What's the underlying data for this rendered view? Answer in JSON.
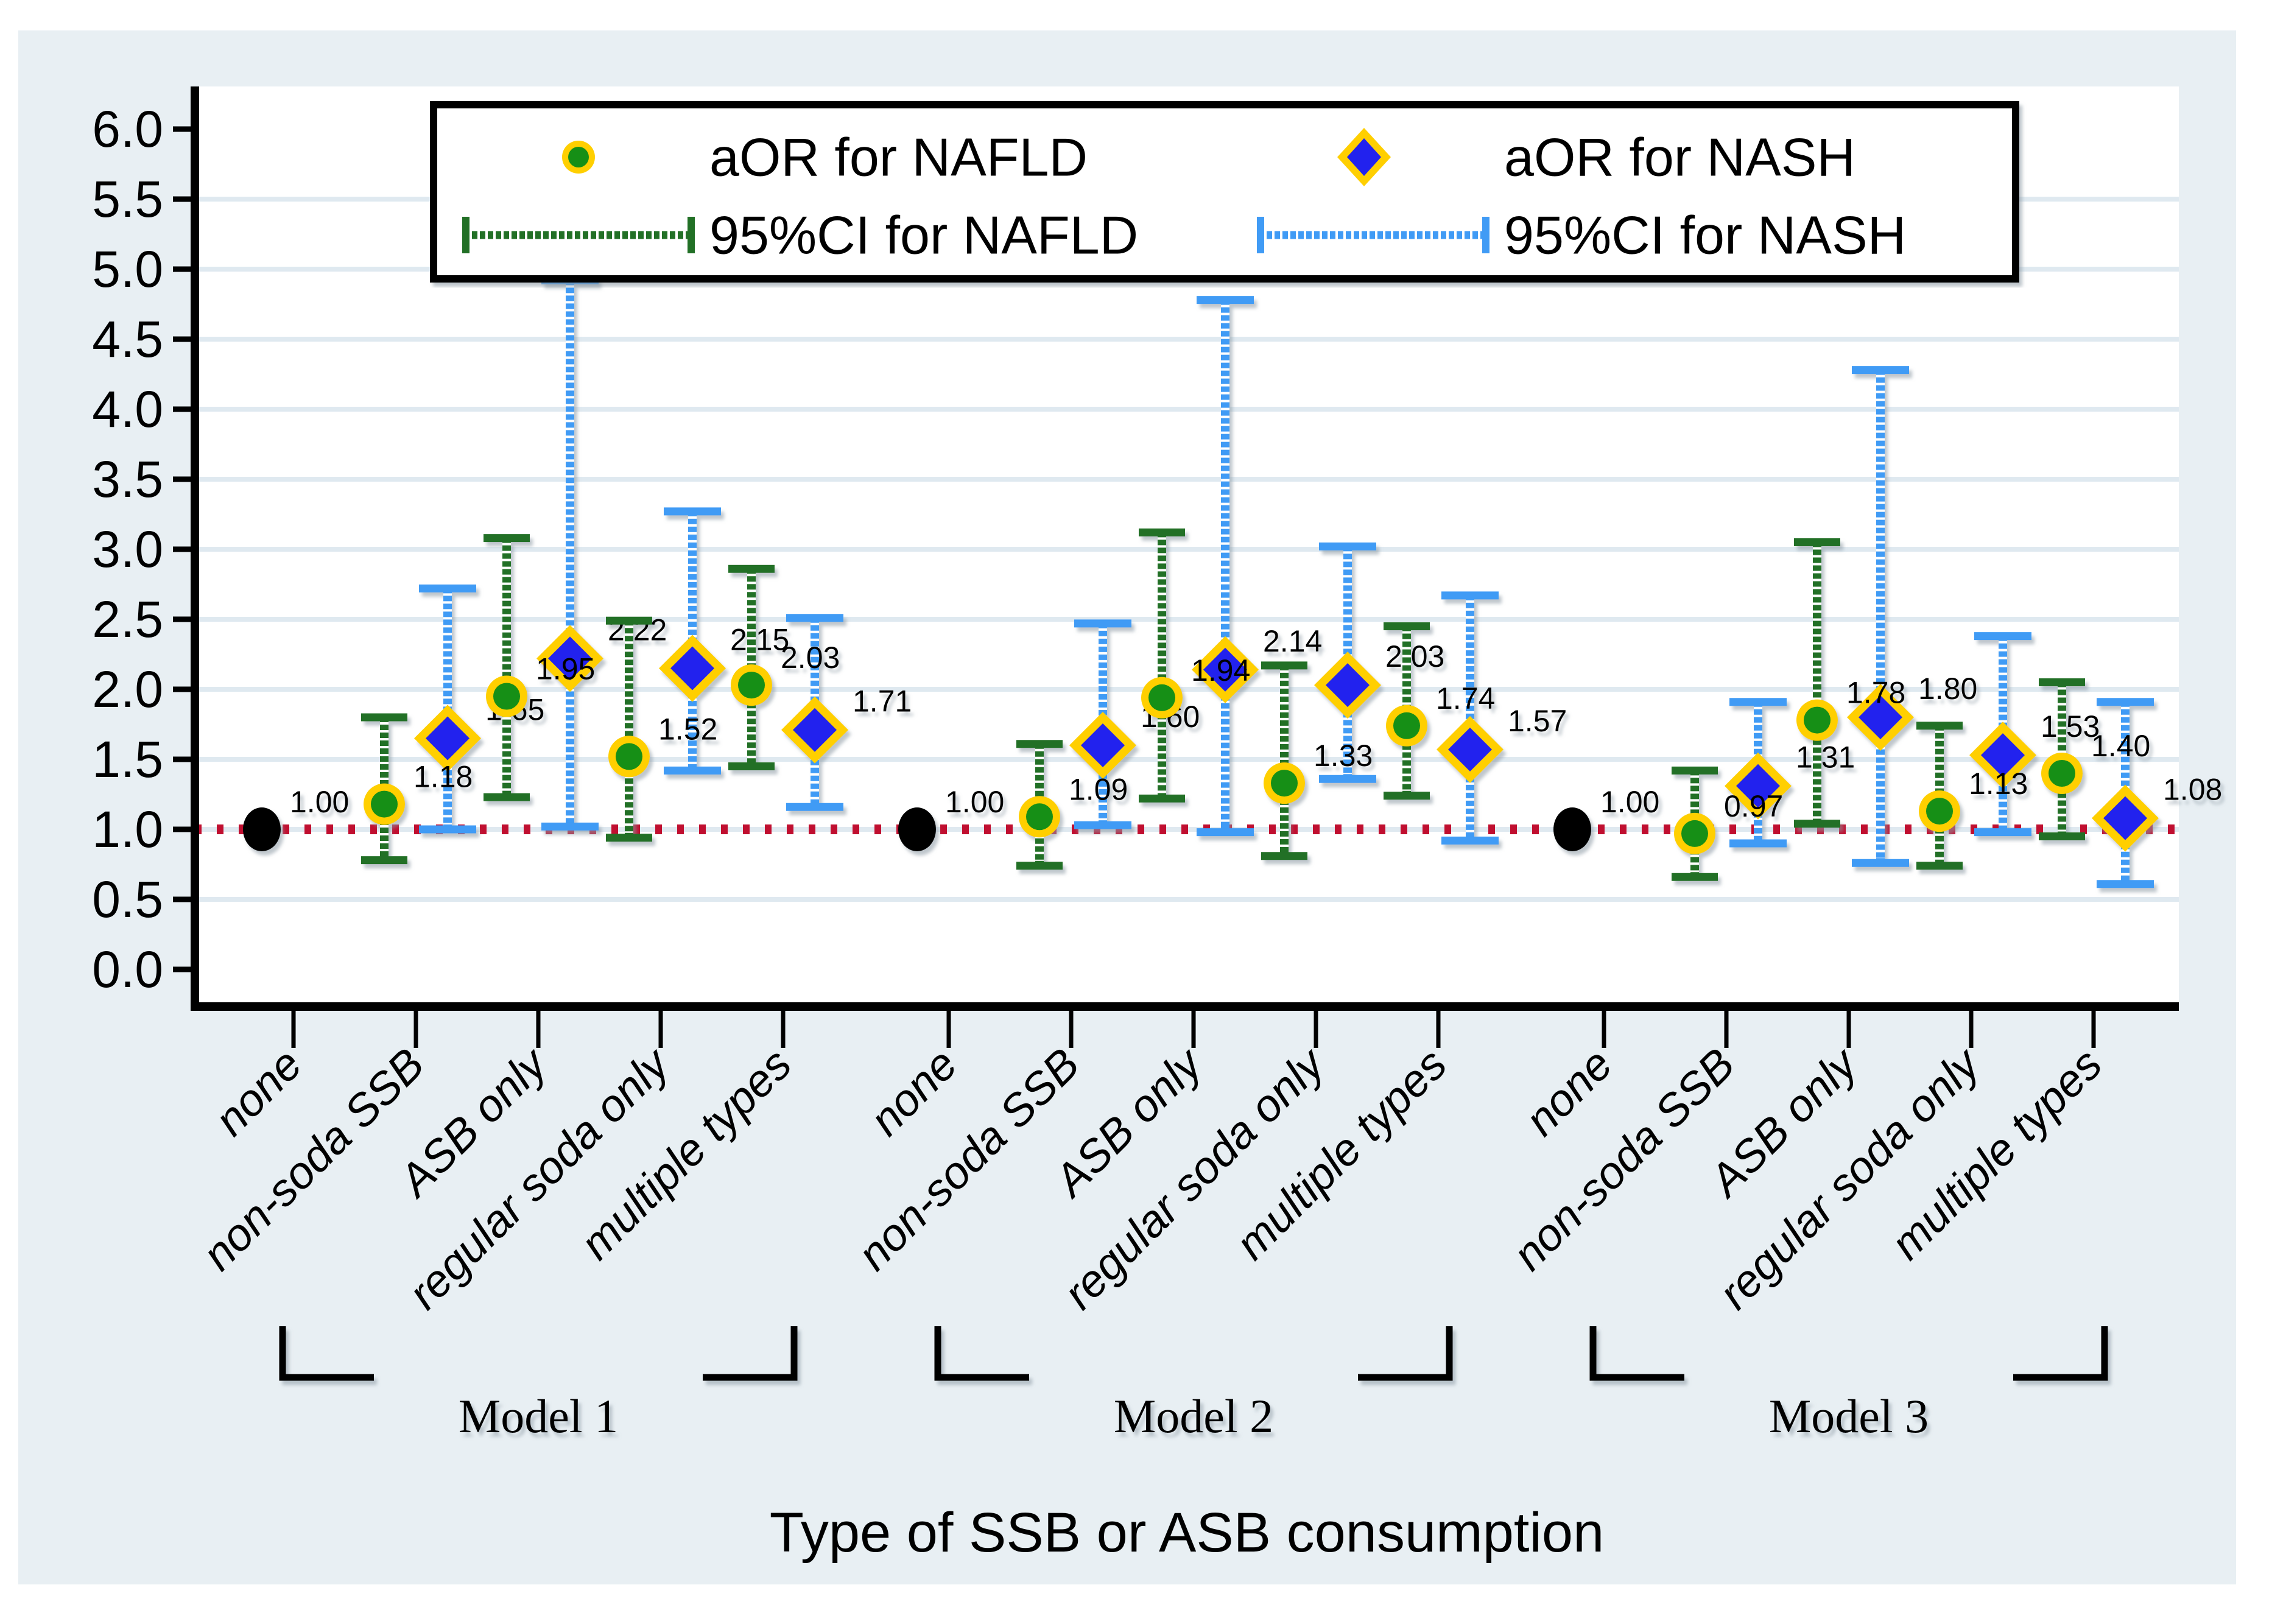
{
  "chart_data": {
    "type": "scatter",
    "subtype": "forest-errorbar",
    "xlabel": "Type of SSB or ASB consumption",
    "ylabel": "",
    "ylim": [
      0,
      6
    ],
    "ytick_step": 0.5,
    "yticks": [
      "0.0",
      "0.5",
      "1.0",
      "1.5",
      "2.0",
      "2.5",
      "3.0",
      "3.5",
      "4.0",
      "4.5",
      "5.0",
      "5.5",
      "6.0"
    ],
    "grid": true,
    "reference_line": 1.0,
    "categories": [
      "none",
      "non-soda SSB",
      "ASB only",
      "regular soda only",
      "multiple types"
    ],
    "legend": {
      "position": "top",
      "items": [
        {
          "id": "nafld-marker",
          "label": "aOR for NAFLD"
        },
        {
          "id": "nash-marker",
          "label": "aOR for NASH"
        },
        {
          "id": "nafld-ci",
          "label": "95%CI for NAFLD"
        },
        {
          "id": "nash-ci",
          "label": "95%CI for NASH"
        }
      ]
    },
    "groups": [
      {
        "label": "Model 1",
        "points": [
          {
            "category": "none",
            "type": "reference",
            "value": 1.0,
            "display": "1.00"
          },
          {
            "category": "non-soda SSB",
            "nafld": {
              "or": 1.18,
              "ci": [
                0.78,
                1.8
              ]
            },
            "nash": {
              "or": 1.65,
              "ci": [
                1.0,
                2.72
              ]
            }
          },
          {
            "category": "ASB only",
            "nafld": {
              "or": 1.95,
              "ci": [
                1.23,
                3.08
              ]
            },
            "nash": {
              "or": 2.22,
              "ci": [
                1.02,
                4.92
              ]
            }
          },
          {
            "category": "regular soda only",
            "nafld": {
              "or": 1.52,
              "ci": [
                0.94,
                2.49
              ]
            },
            "nash": {
              "or": 2.15,
              "ci": [
                1.42,
                3.27
              ]
            }
          },
          {
            "category": "multiple types",
            "nafld": {
              "or": 2.03,
              "ci": [
                1.45,
                2.86
              ]
            },
            "nash": {
              "or": 1.71,
              "ci": [
                1.16,
                2.51
              ]
            }
          }
        ]
      },
      {
        "label": "Model 2",
        "points": [
          {
            "category": "none",
            "type": "reference",
            "value": 1.0,
            "display": "1.00"
          },
          {
            "category": "non-soda SSB",
            "nafld": {
              "or": 1.09,
              "ci": [
                0.74,
                1.61
              ]
            },
            "nash": {
              "or": 1.6,
              "ci": [
                1.03,
                2.47
              ]
            }
          },
          {
            "category": "ASB only",
            "nafld": {
              "or": 1.94,
              "ci": [
                1.22,
                3.12
              ]
            },
            "nash": {
              "or": 2.14,
              "ci": [
                0.98,
                4.78
              ]
            }
          },
          {
            "category": "regular soda only",
            "nafld": {
              "or": 1.33,
              "ci": [
                0.81,
                2.17
              ]
            },
            "nash": {
              "or": 2.03,
              "ci": [
                1.36,
                3.02
              ]
            }
          },
          {
            "category": "multiple types",
            "nafld": {
              "or": 1.74,
              "ci": [
                1.24,
                2.45
              ]
            },
            "nash": {
              "or": 1.57,
              "ci": [
                0.92,
                2.67
              ]
            }
          }
        ]
      },
      {
        "label": "Model 3",
        "points": [
          {
            "category": "none",
            "type": "reference",
            "value": 1.0,
            "display": "1.00"
          },
          {
            "category": "non-soda SSB",
            "nafld": {
              "or": 0.97,
              "ci": [
                0.66,
                1.42
              ]
            },
            "nash": {
              "or": 1.31,
              "ci": [
                0.9,
                1.91
              ]
            }
          },
          {
            "category": "ASB only",
            "nafld": {
              "or": 1.78,
              "ci": [
                1.04,
                3.05
              ]
            },
            "nash": {
              "or": 1.8,
              "ci": [
                0.76,
                4.28
              ]
            }
          },
          {
            "category": "regular soda only",
            "nafld": {
              "or": 1.13,
              "ci": [
                0.74,
                1.74
              ]
            },
            "nash": {
              "or": 1.53,
              "ci": [
                0.98,
                2.38
              ]
            }
          },
          {
            "category": "multiple types",
            "nafld": {
              "or": 1.4,
              "ci": [
                0.95,
                2.05
              ]
            },
            "nash": {
              "or": 1.08,
              "ci": [
                0.61,
                1.91
              ]
            }
          }
        ]
      }
    ],
    "colors": {
      "figure_bg": "#e8eff3",
      "plot_bg": "#ffffff",
      "gridline": "#dfe9f0",
      "axis": "#000000",
      "reference_line": "#c00f30",
      "nafld_marker": "#168f16",
      "nafld_ci": "#236f26",
      "nash_marker": "#2222ee",
      "nash_ci": "#3f9bf5",
      "marker_ring": "#ffcf00",
      "reference_dot": "#000000",
      "text": "#000000"
    }
  }
}
